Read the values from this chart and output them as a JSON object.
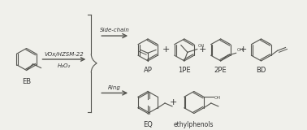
{
  "bg_color": "#f0f0eb",
  "line_color": "#555550",
  "text_color": "#333333",
  "catalyst_text": "VOx/HZSM-22",
  "oxidant_text": "H₂O₂",
  "side_chain_text": "Side-chain",
  "ring_text": "Ring",
  "label_EB": "EB",
  "label_AP": "AP",
  "label_1PE": "1PE",
  "label_2PE": "2PE",
  "label_BD": "BD",
  "label_EQ": "EQ",
  "label_ethylphenols": "ethylphenols",
  "font_size_label": 6,
  "font_size_catalyst": 5,
  "font_size_plus": 8
}
